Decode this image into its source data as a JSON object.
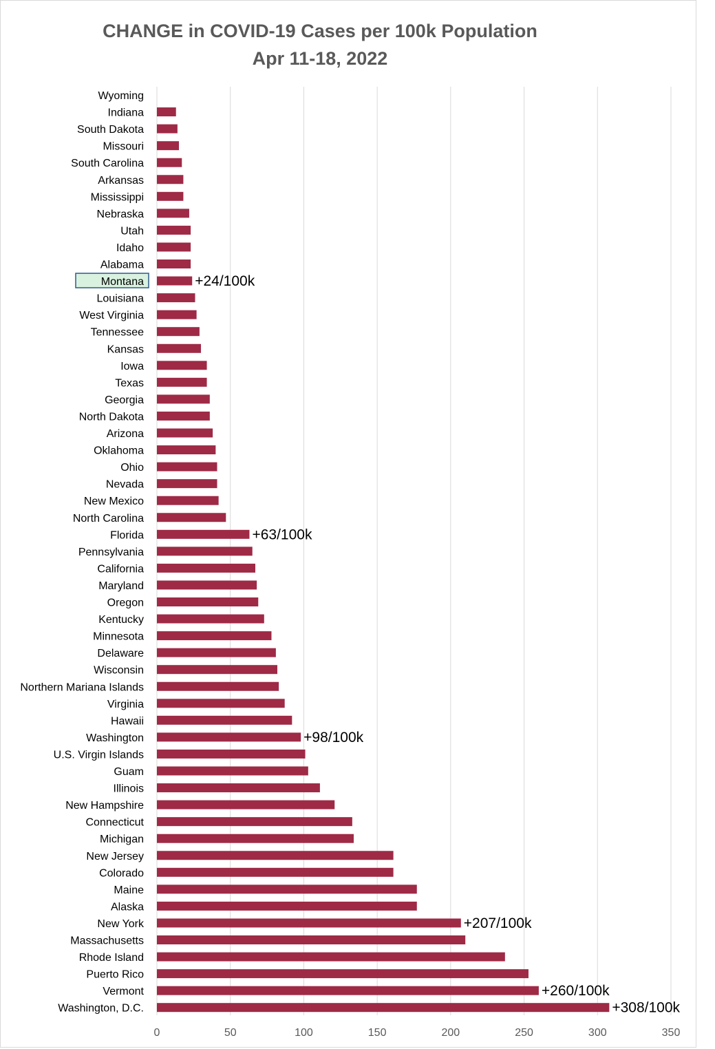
{
  "chart_data": {
    "type": "bar",
    "orientation": "horizontal",
    "title": "CHANGE in COVID-19 Cases per 100k Population",
    "subtitle": "Apr 11-18, 2022",
    "xlabel": "",
    "ylabel": "",
    "xlim": [
      0,
      350
    ],
    "x_ticks": [
      0,
      50,
      100,
      150,
      200,
      250,
      300,
      350
    ],
    "grid": "vertical",
    "bar_color": "#9e2a46",
    "highlight_color": "#d9f2e0",
    "highlight_border": "#2e5a88",
    "highlighted_category": "Montana",
    "categories": [
      "Wyoming",
      "Indiana",
      "South Dakota",
      "Missouri",
      "South Carolina",
      "Arkansas",
      "Mississippi",
      "Nebraska",
      "Utah",
      "Idaho",
      "Alabama",
      "Montana",
      "Louisiana",
      "West Virginia",
      "Tennessee",
      "Kansas",
      "Iowa",
      "Texas",
      "Georgia",
      "North Dakota",
      "Arizona",
      "Oklahoma",
      "Ohio",
      "Nevada",
      "New Mexico",
      "North Carolina",
      "Florida",
      "Pennsylvania",
      "California",
      "Maryland",
      "Oregon",
      "Kentucky",
      "Minnesota",
      "Delaware",
      "Wisconsin",
      "Northern Mariana Islands",
      "Virginia",
      "Hawaii",
      "Washington",
      "U.S. Virgin Islands",
      "Guam",
      "Illinois",
      "New Hampshire",
      "Connecticut",
      "Michigan",
      "New Jersey",
      "Colorado",
      "Maine",
      "Alaska",
      "New York",
      "Massachusetts",
      "Rhode Island",
      "Puerto Rico",
      "Vermont",
      "Washington, D.C."
    ],
    "values": [
      0,
      13,
      14,
      15,
      17,
      18,
      18,
      22,
      23,
      23,
      23,
      24,
      26,
      27,
      29,
      30,
      34,
      34,
      36,
      36,
      38,
      40,
      41,
      41,
      42,
      47,
      63,
      65,
      67,
      68,
      69,
      73,
      78,
      81,
      82,
      83,
      87,
      92,
      98,
      101,
      103,
      111,
      121,
      133,
      134,
      161,
      161,
      177,
      177,
      207,
      210,
      237,
      253,
      260,
      308
    ],
    "data_labels": [
      {
        "category": "Montana",
        "text": "+24/100k"
      },
      {
        "category": "Florida",
        "text": "+63/100k"
      },
      {
        "category": "Washington",
        "text": "+98/100k"
      },
      {
        "category": "New York",
        "text": "+207/100k"
      },
      {
        "category": "Vermont",
        "text": "+260/100k"
      },
      {
        "category": "Washington, D.C.",
        "text": "+308/100k"
      }
    ]
  }
}
